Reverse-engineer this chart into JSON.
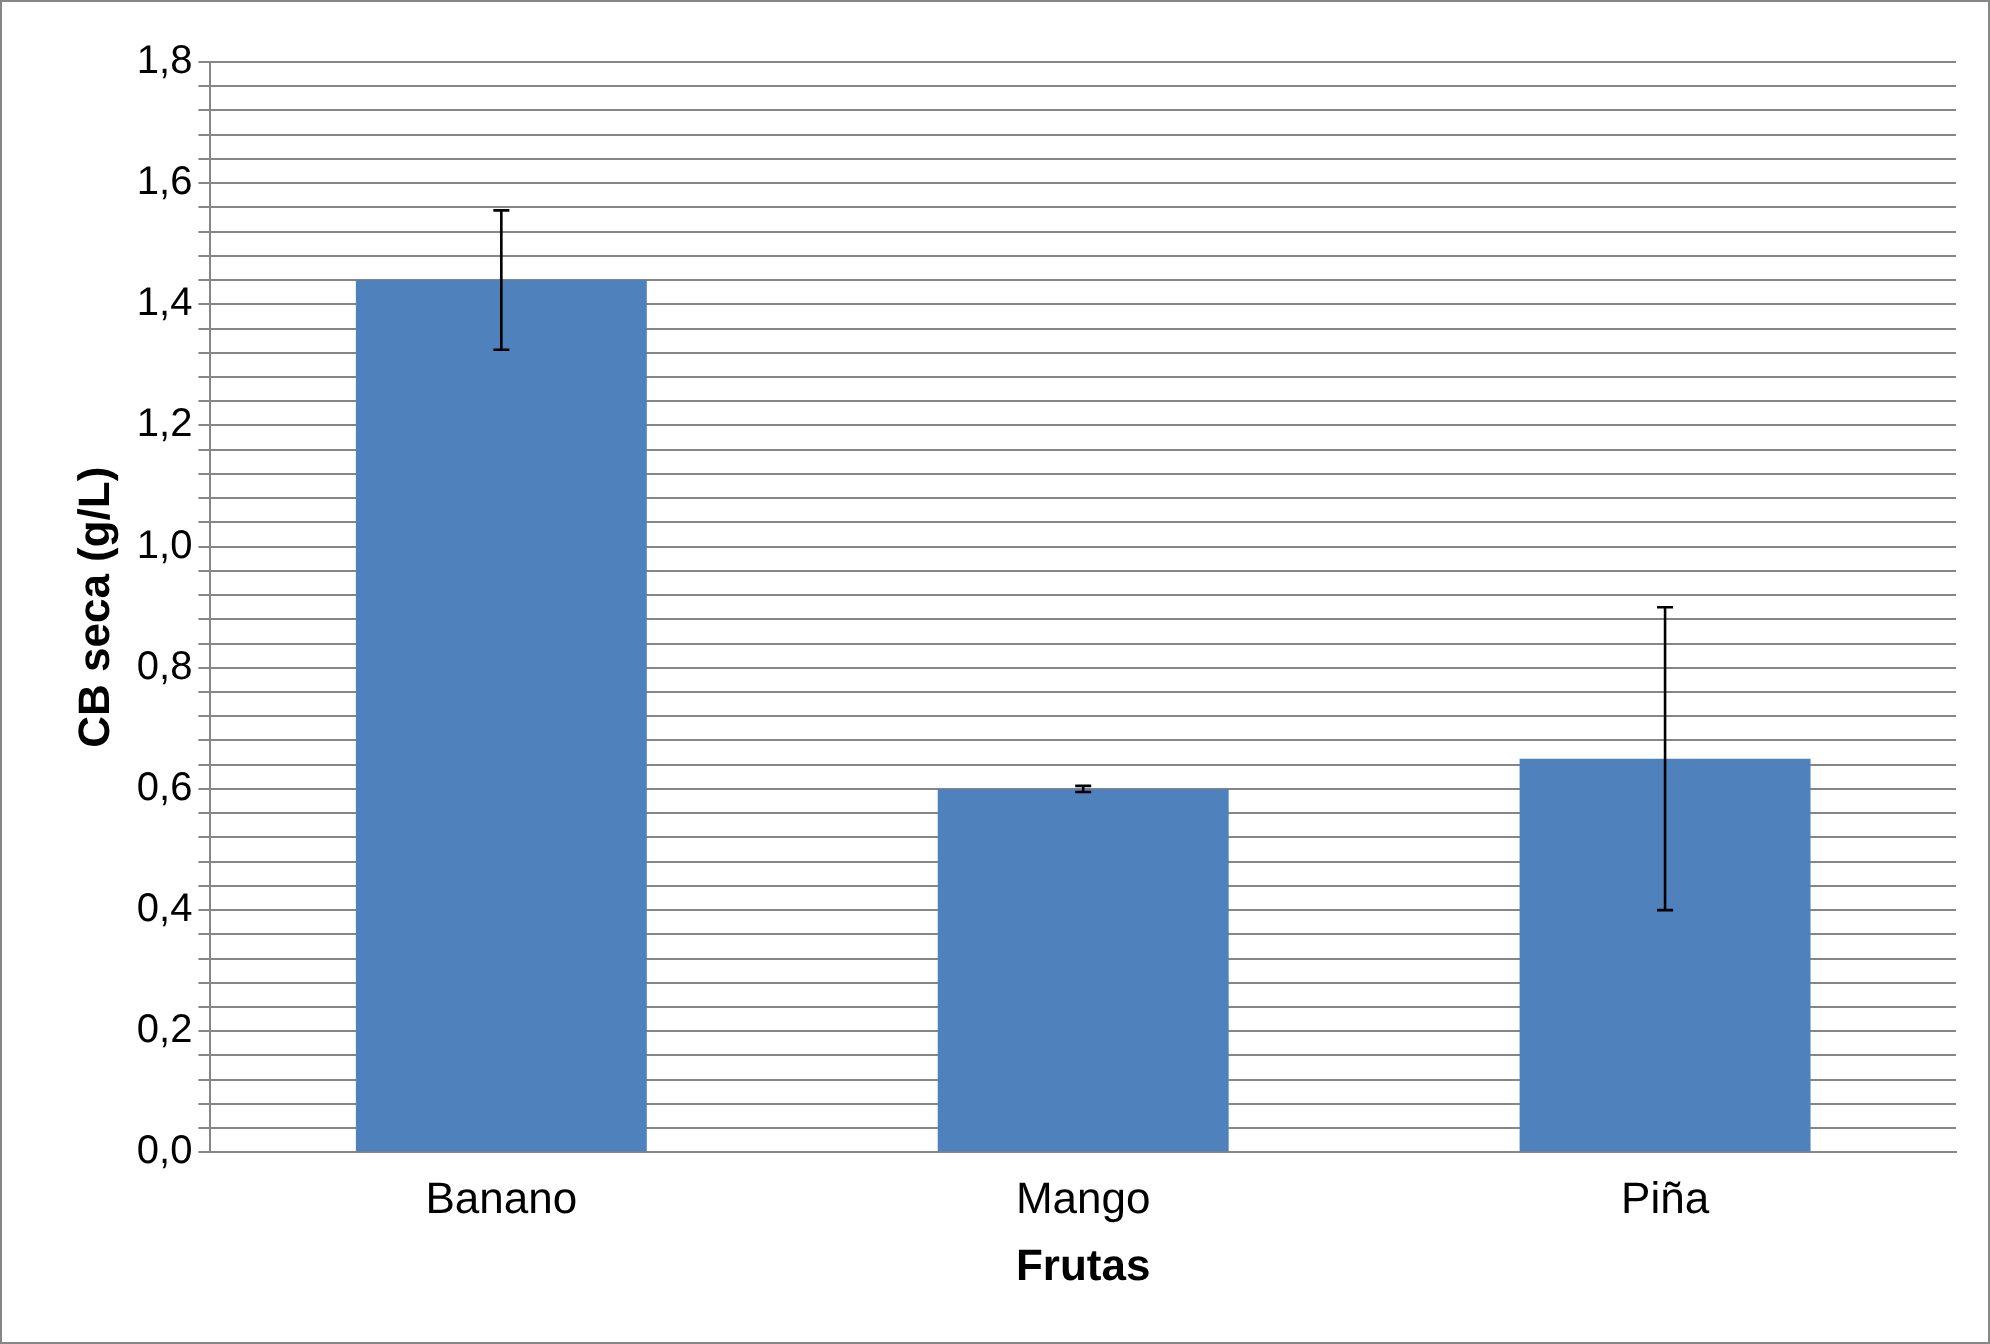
{
  "chart_data": {
    "type": "bar",
    "xlabel": "Frutas",
    "ylabel": "CB seca (g/L)",
    "categories": [
      "Banano",
      "Mango",
      "Piña"
    ],
    "values": [
      1.44,
      0.6,
      0.65
    ],
    "errors": [
      0.115,
      0.005,
      0.25
    ],
    "color": "#4f81bd",
    "ylim": [
      0,
      1.8
    ],
    "yticks": [
      {
        "value": 0,
        "label": "0,0"
      },
      {
        "value": 0.04,
        "label": null
      },
      {
        "value": 0.08,
        "label": null
      },
      {
        "value": 0.12,
        "label": null
      },
      {
        "value": 0.16,
        "label": null
      },
      {
        "value": 0.2,
        "label": "0,2"
      },
      {
        "value": 0.24,
        "label": null
      },
      {
        "value": 0.28,
        "label": null
      },
      {
        "value": 0.32,
        "label": null
      },
      {
        "value": 0.36,
        "label": null
      },
      {
        "value": 0.4,
        "label": "0,4"
      },
      {
        "value": 0.44,
        "label": null
      },
      {
        "value": 0.48,
        "label": null
      },
      {
        "value": 0.52,
        "label": null
      },
      {
        "value": 0.56,
        "label": null
      },
      {
        "value": 0.6,
        "label": "0,6"
      },
      {
        "value": 0.64,
        "label": null
      },
      {
        "value": 0.68,
        "label": null
      },
      {
        "value": 0.72,
        "label": null
      },
      {
        "value": 0.76,
        "label": null
      },
      {
        "value": 0.8,
        "label": "0,8"
      },
      {
        "value": 0.84,
        "label": null
      },
      {
        "value": 0.88,
        "label": null
      },
      {
        "value": 0.92,
        "label": null
      },
      {
        "value": 0.96,
        "label": null
      },
      {
        "value": 1.0,
        "label": "1,0"
      },
      {
        "value": 1.04,
        "label": null
      },
      {
        "value": 1.08,
        "label": null
      },
      {
        "value": 1.12,
        "label": null
      },
      {
        "value": 1.16,
        "label": null
      },
      {
        "value": 1.2,
        "label": "1,2"
      },
      {
        "value": 1.24,
        "label": null
      },
      {
        "value": 1.28,
        "label": null
      },
      {
        "value": 1.32,
        "label": null
      },
      {
        "value": 1.36,
        "label": null
      },
      {
        "value": 1.4,
        "label": "1,4"
      },
      {
        "value": 1.44,
        "label": null
      },
      {
        "value": 1.48,
        "label": null
      },
      {
        "value": 1.52,
        "label": null
      },
      {
        "value": 1.56,
        "label": null
      },
      {
        "value": 1.6,
        "label": "1,6"
      },
      {
        "value": 1.64,
        "label": null
      },
      {
        "value": 1.68,
        "label": null
      },
      {
        "value": 1.72,
        "label": null
      },
      {
        "value": 1.76,
        "label": null
      },
      {
        "value": 1.8,
        "label": "1,8"
      }
    ],
    "grid": "y",
    "legend": false
  }
}
